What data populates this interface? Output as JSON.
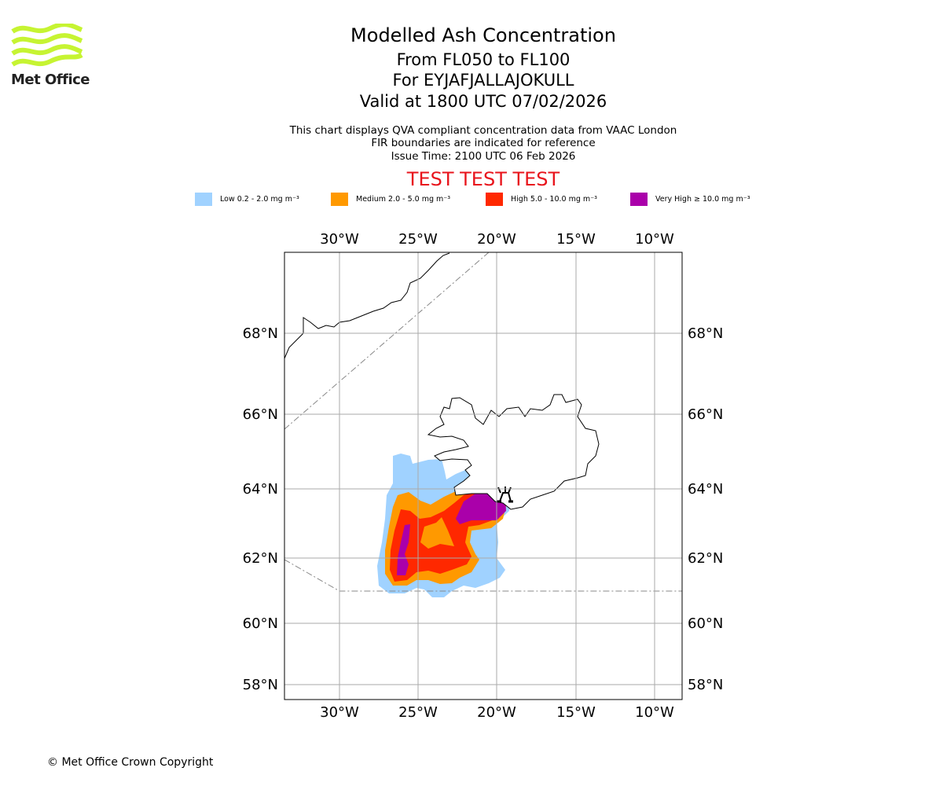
{
  "logo": {
    "text": "Met Office",
    "color": "#c6f432"
  },
  "header": {
    "title": "Modelled Ash Concentration",
    "levels": "From FL050 to FL100",
    "volcano": "For EYJAFJALLAJOKULL",
    "valid": "Valid at 1800 UTC 07/02/2026",
    "note1": "This chart displays QVA compliant concentration data from VAAC London",
    "note2": "FIR boundaries are indicated for reference",
    "issue": "Issue Time: 2100 UTC 06 Feb 2026",
    "test_banner": "TEST TEST TEST"
  },
  "legend": [
    {
      "label": "Low 0.2 - 2.0 mg m⁻³",
      "color": "#a0d2ff"
    },
    {
      "label": "Medium 2.0 - 5.0 mg m⁻³",
      "color": "#ff9900"
    },
    {
      "label": "High 5.0 - 10.0 mg m⁻³",
      "color": "#ff2800"
    },
    {
      "label": "Very High ≥ 10.0 mg m⁻³",
      "color": "#aa00aa"
    }
  ],
  "chart_data": {
    "type": "map",
    "lon_ticks": [
      "30°W",
      "25°W",
      "20°W",
      "15°W",
      "10°W"
    ],
    "lat_ticks": [
      "68°N",
      "66°N",
      "64°N",
      "62°N",
      "60°N",
      "58°N"
    ],
    "lon_range": [
      -33.5,
      -8.3
    ],
    "lat_range": [
      57.6,
      70.2
    ],
    "volcano": {
      "name": "EYJAFJALLAJOKULL",
      "lat": 63.63,
      "lon": -19.62
    },
    "grid": true
  },
  "footer": {
    "copyright": "© Met Office Crown Copyright"
  }
}
